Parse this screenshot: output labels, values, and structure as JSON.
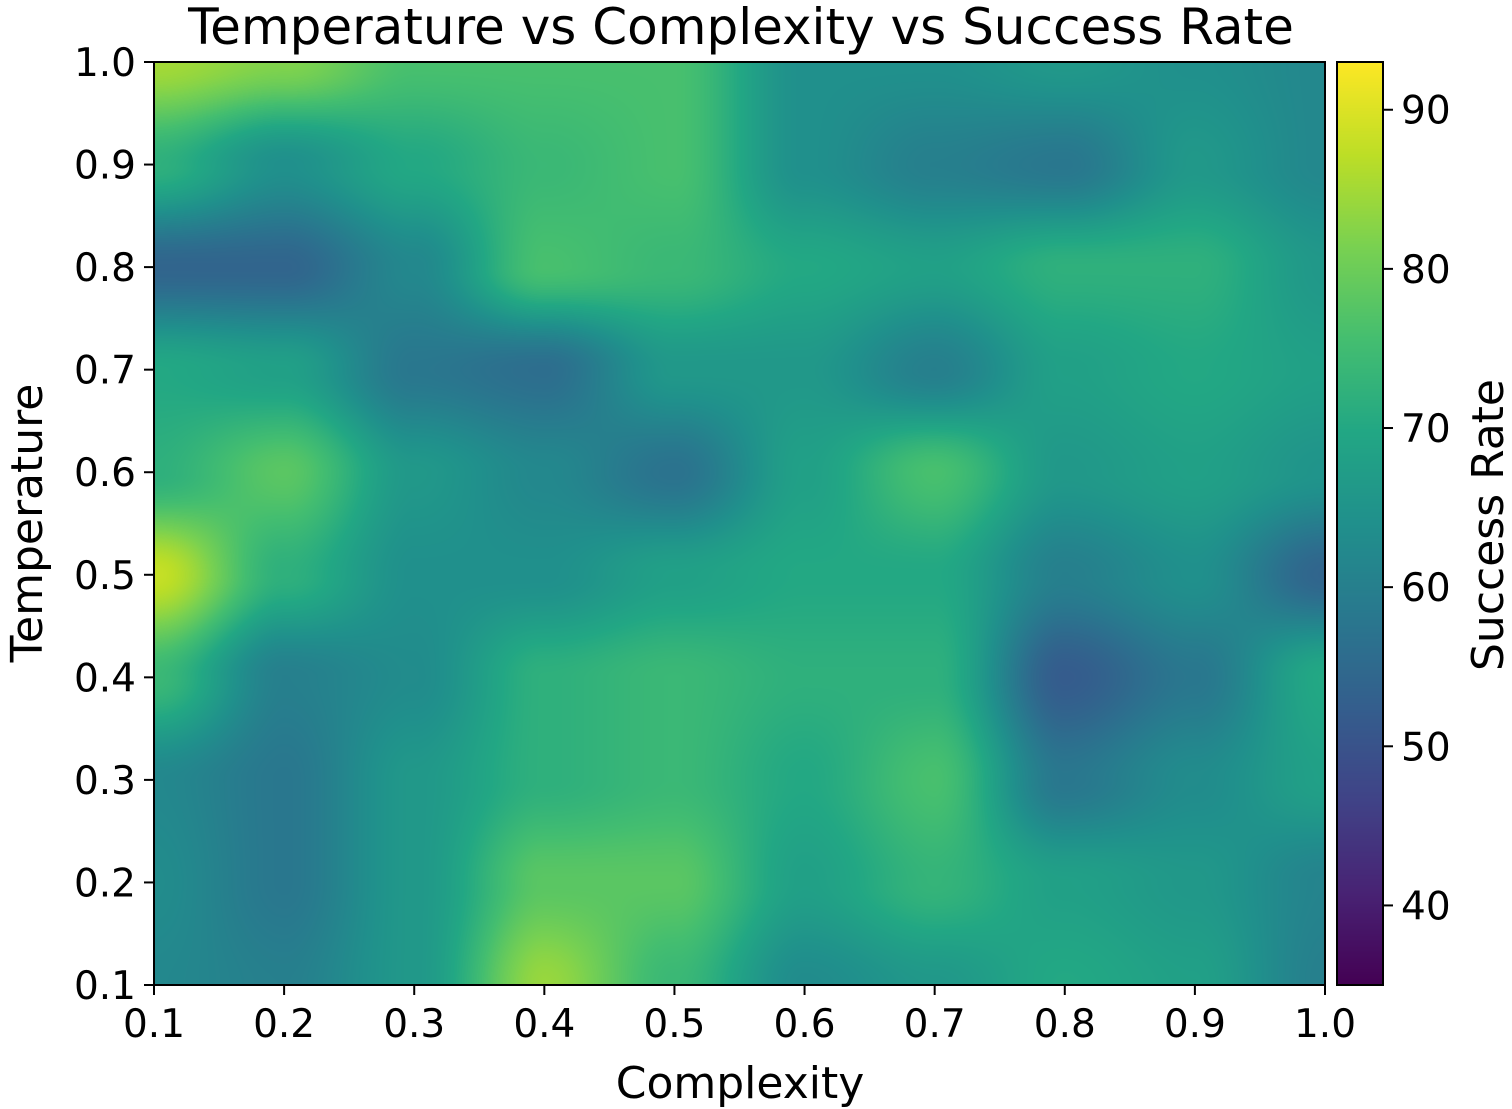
{
  "chart_data": {
    "type": "heatmap",
    "title": "Temperature vs Complexity vs Success Rate",
    "xlabel": "Complexity",
    "ylabel": "Temperature",
    "colorbar_label": "Success Rate",
    "colormap": "viridis",
    "xlim": [
      0.1,
      1.0
    ],
    "ylim": [
      0.1,
      1.0
    ],
    "color_range": [
      35,
      93
    ],
    "x_ticks": [
      "0.1",
      "0.2",
      "0.3",
      "0.4",
      "0.5",
      "0.6",
      "0.7",
      "0.8",
      "0.9",
      "1.0"
    ],
    "y_ticks": [
      "0.1",
      "0.2",
      "0.3",
      "0.4",
      "0.5",
      "0.6",
      "0.7",
      "0.8",
      "0.9",
      "1.0"
    ],
    "colorbar_ticks": [
      "40",
      "50",
      "60",
      "70",
      "80",
      "90"
    ],
    "x": [
      0.1,
      0.2,
      0.3,
      0.4,
      0.5,
      0.6,
      0.7,
      0.8,
      0.9,
      1.0
    ],
    "y": [
      0.1,
      0.2,
      0.3,
      0.4,
      0.5,
      0.6,
      0.7,
      0.8,
      0.9,
      1.0
    ],
    "z": [
      [
        62,
        60,
        66,
        84,
        74,
        63,
        66,
        70,
        68,
        60
      ],
      [
        63,
        58,
        66,
        78,
        78,
        68,
        73,
        68,
        66,
        61
      ],
      [
        62,
        58,
        66,
        72,
        74,
        70,
        76,
        58,
        63,
        68
      ],
      [
        74,
        60,
        63,
        72,
        74,
        72,
        72,
        52,
        58,
        70
      ],
      [
        88,
        72,
        64,
        64,
        68,
        70,
        70,
        60,
        64,
        54
      ],
      [
        72,
        78,
        66,
        62,
        57,
        68,
        76,
        66,
        68,
        65
      ],
      [
        70,
        68,
        58,
        56,
        66,
        66,
        60,
        68,
        70,
        68
      ],
      [
        54,
        54,
        62,
        76,
        74,
        70,
        68,
        72,
        72,
        66
      ],
      [
        72,
        64,
        70,
        74,
        76,
        64,
        60,
        58,
        66,
        62
      ],
      [
        85,
        82,
        76,
        76,
        76,
        64,
        64,
        66,
        64,
        62
      ]
    ]
  }
}
